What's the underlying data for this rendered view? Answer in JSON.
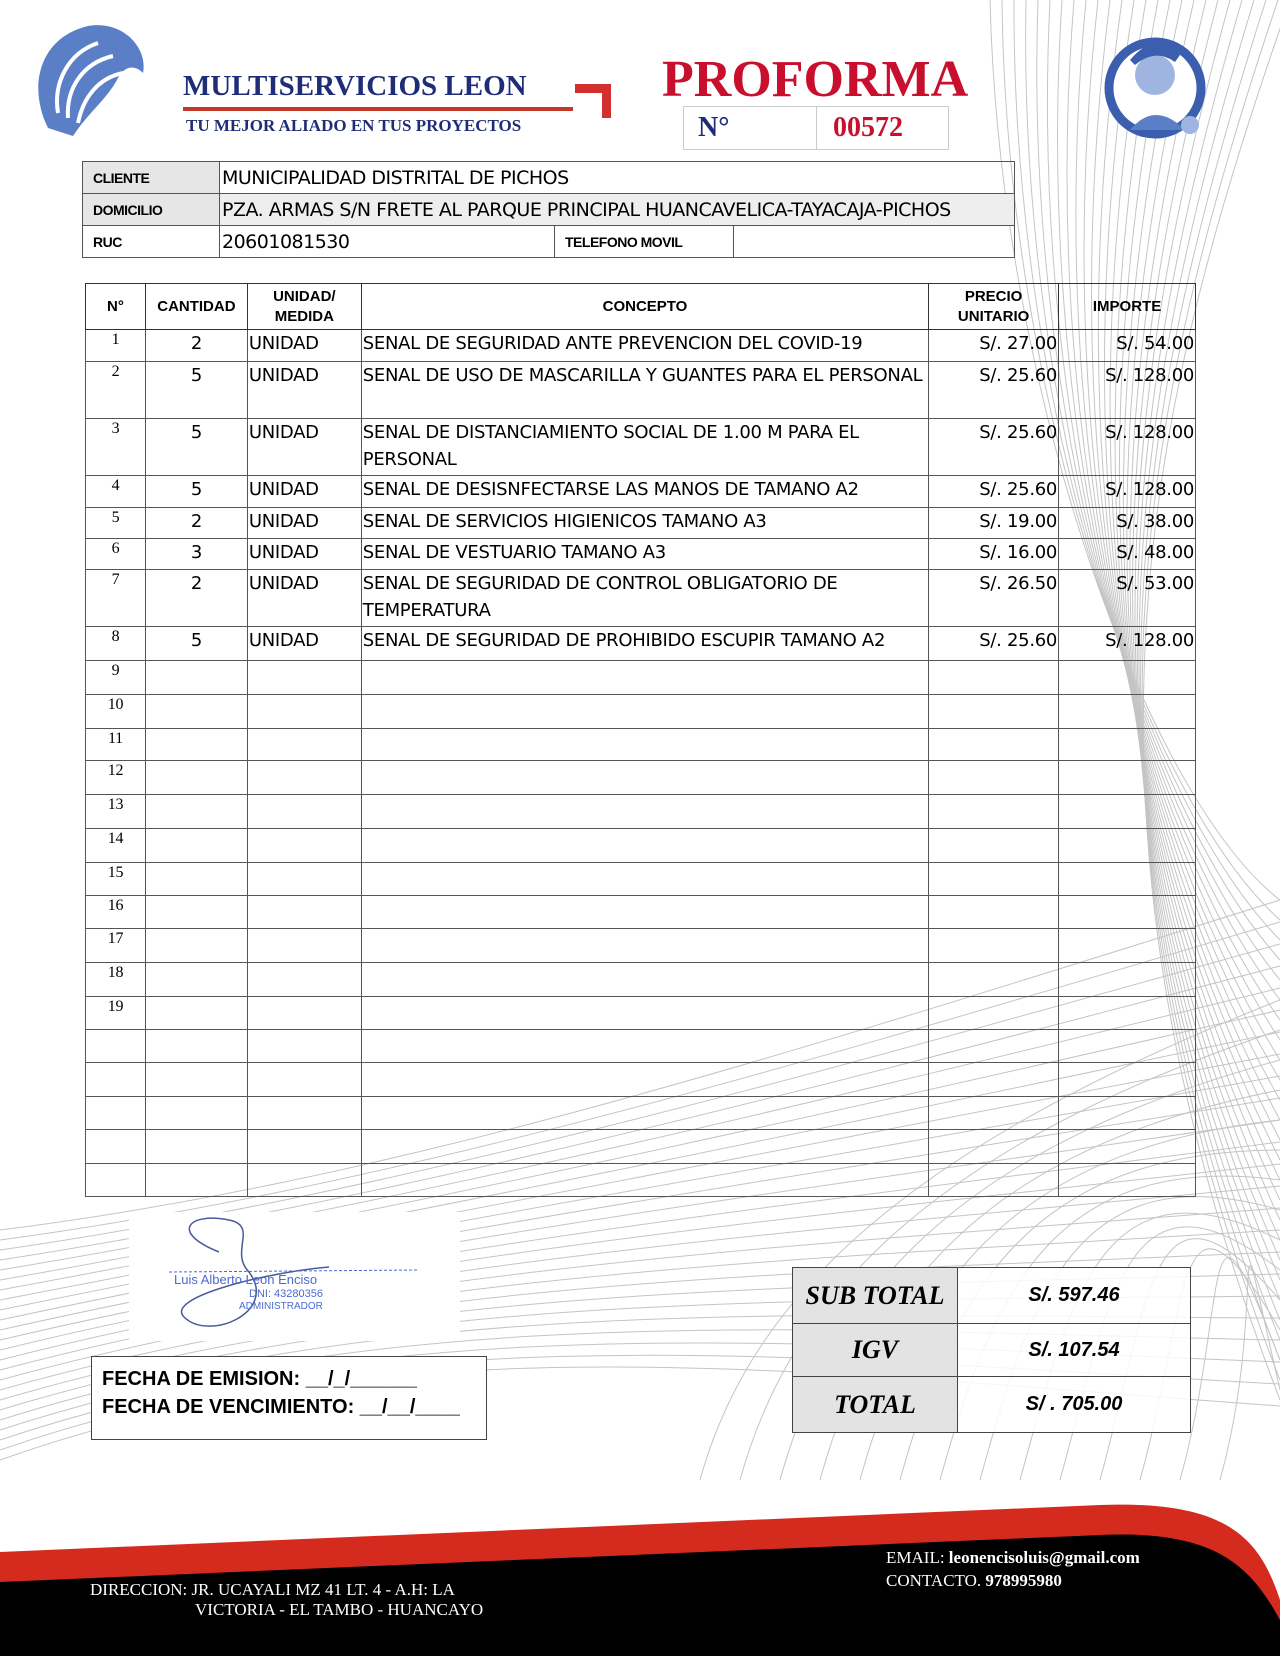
{
  "header": {
    "company": "MULTISERVICIOS LEON",
    "slogan": "TU MEJOR ALIADO EN TUS PROYECTOS",
    "doc_title": "PROFORMA",
    "number_label": "N°",
    "number": "00572"
  },
  "client": {
    "cliente_label": "CLIENTE",
    "cliente": "MUNICIPALIDAD DISTRITAL DE PICHOS",
    "domicilio_label": "DOMICILIO",
    "domicilio": "PZA. ARMAS S/N FRETE AL PARQUE PRINCIPAL HUANCAVELICA-TAYACAJA-PICHOS",
    "ruc_label": "RUC",
    "ruc": "20601081530",
    "telefono_label": "TELEFONO MOVIL",
    "telefono": ""
  },
  "items": {
    "headers": [
      "N°",
      "CANTIDAD",
      "UNIDAD/ MEDIDA",
      "CONCEPTO",
      "PRECIO UNITARIO",
      "IMPORTE"
    ],
    "rows": [
      {
        "n": "1",
        "qty": "2",
        "unit": "UNIDAD",
        "concept": "SENAL DE SEGURIDAD ANTE PREVENCION DEL COVID-19",
        "price": "S/. 27.00",
        "amount": "S/. 54.00"
      },
      {
        "n": "2",
        "qty": "5",
        "unit": "UNIDAD",
        "concept": "SENAL DE USO DE MASCARILLA Y GUANTES PARA EL PERSONAL",
        "price": "S/. 25.60",
        "amount": "S/. 128.00"
      },
      {
        "n": "3",
        "qty": "5",
        "unit": "UNIDAD",
        "concept": "SENAL DE DISTANCIAMIENTO SOCIAL DE 1.00 M PARA EL PERSONAL",
        "price": "S/. 25.60",
        "amount": "S/. 128.00"
      },
      {
        "n": "4",
        "qty": "5",
        "unit": "UNIDAD",
        "concept": "SENAL DE DESISNFECTARSE LAS MANOS DE TAMANO A2",
        "price": "S/. 25.60",
        "amount": "S/. 128.00"
      },
      {
        "n": "5",
        "qty": "2",
        "unit": "UNIDAD",
        "concept": "SENAL DE SERVICIOS HIGIENICOS TAMANO A3",
        "price": "S/. 19.00",
        "amount": "S/. 38.00"
      },
      {
        "n": "6",
        "qty": "3",
        "unit": "UNIDAD",
        "concept": "SENAL DE VESTUARIO TAMANO A3",
        "price": "S/. 16.00",
        "amount": "S/. 48.00"
      },
      {
        "n": "7",
        "qty": "2",
        "unit": "UNIDAD",
        "concept": "SENAL DE SEGURIDAD DE CONTROL OBLIGATORIO DE TEMPERATURA",
        "price": "S/. 26.50",
        "amount": "S/. 53.00"
      },
      {
        "n": "8",
        "qty": "5",
        "unit": "UNIDAD",
        "concept": "SENAL DE SEGURIDAD DE PROHIBIDO ESCUPIR TAMANO A2",
        "price": "S/. 25.60",
        "amount": "S/. 128.00"
      },
      {
        "n": "9"
      },
      {
        "n": "10"
      },
      {
        "n": "11"
      },
      {
        "n": "12"
      },
      {
        "n": "13"
      },
      {
        "n": "14"
      },
      {
        "n": "15"
      },
      {
        "n": "16"
      },
      {
        "n": "17"
      },
      {
        "n": "18"
      },
      {
        "n": "19"
      },
      {
        "n": ""
      },
      {
        "n": ""
      },
      {
        "n": ""
      },
      {
        "n": ""
      },
      {
        "n": ""
      }
    ]
  },
  "signature": {
    "name": "Luis Alberto Leon Enciso",
    "dni": "DNI: 43280356",
    "role": "ADMINISTRADOR"
  },
  "dates": {
    "emision": "FECHA DE EMISION: __/_/______",
    "vencimiento": "FECHA DE VENCIMIENTO: __/__/____"
  },
  "totals": {
    "subtotal_label": "SUB TOTAL",
    "subtotal": "S/. 597.46",
    "igv_label": "IGV",
    "igv": "S/. 107.54",
    "total_label": "TOTAL",
    "total": "S/ . 705.00"
  },
  "footer": {
    "address_line1": "DIRECCION: JR. UCAYALI MZ 41 LT. 4 - A.H: LA",
    "address_line2": "VICTORIA - EL TAMBO - HUANCAYO",
    "email_label": "EMAIL:",
    "email": "leonencisoluis@gmail.com",
    "contact_label": "CONTACTO.",
    "contact": "978995980"
  },
  "colors": {
    "brand_blue": "#1f2d78",
    "accent_red": "#c8102e",
    "footer_black": "#000000"
  }
}
